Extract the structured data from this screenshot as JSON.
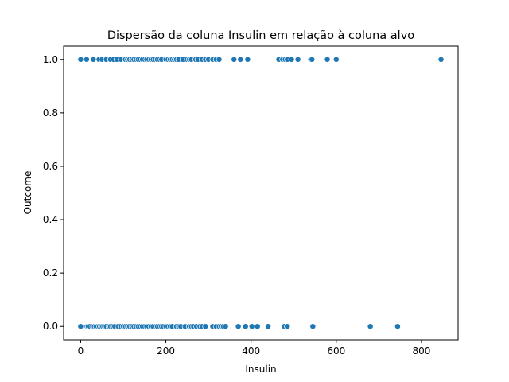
{
  "chart_data": {
    "type": "scatter",
    "title": "Dispersão da coluna Insulin em relação à coluna alvo",
    "xlabel": "Insulin",
    "ylabel": "Outcome",
    "xlim": [
      -40,
      886
    ],
    "ylim": [
      -0.05,
      1.05
    ],
    "xticks": [
      0,
      200,
      400,
      600,
      800
    ],
    "yticks": [
      0.0,
      0.2,
      0.4,
      0.6,
      0.8,
      1.0
    ],
    "xtick_labels": [
      "0",
      "200",
      "400",
      "600",
      "800"
    ],
    "ytick_labels": [
      "0.0",
      "0.2",
      "0.4",
      "0.6",
      "0.8",
      "1.0"
    ],
    "grid": false,
    "marker_color": "#1f77b4",
    "series": [
      {
        "points": [
          [
            0,
            1
          ],
          [
            14,
            1
          ],
          [
            30,
            1
          ],
          [
            43,
            1
          ],
          [
            50,
            1
          ],
          [
            60,
            1
          ],
          [
            70,
            1
          ],
          [
            77,
            1
          ],
          [
            85,
            1
          ],
          [
            95,
            1
          ],
          [
            105,
            1
          ],
          [
            110,
            1
          ],
          [
            115,
            1
          ],
          [
            120,
            1
          ],
          [
            125,
            1
          ],
          [
            130,
            1
          ],
          [
            135,
            1
          ],
          [
            140,
            1
          ],
          [
            145,
            1
          ],
          [
            150,
            1
          ],
          [
            155,
            1
          ],
          [
            160,
            1
          ],
          [
            165,
            1
          ],
          [
            170,
            1
          ],
          [
            175,
            1
          ],
          [
            180,
            1
          ],
          [
            185,
            1
          ],
          [
            190,
            1
          ],
          [
            200,
            1
          ],
          [
            205,
            1
          ],
          [
            210,
            1
          ],
          [
            215,
            1
          ],
          [
            220,
            1
          ],
          [
            225,
            1
          ],
          [
            230,
            1
          ],
          [
            240,
            1
          ],
          [
            250,
            1
          ],
          [
            255,
            1
          ],
          [
            260,
            1
          ],
          [
            270,
            1
          ],
          [
            275,
            1
          ],
          [
            285,
            1
          ],
          [
            293,
            1
          ],
          [
            300,
            1
          ],
          [
            310,
            1
          ],
          [
            318,
            1
          ],
          [
            325,
            1
          ],
          [
            360,
            1
          ],
          [
            375,
            1
          ],
          [
            392,
            1
          ],
          [
            465,
            1
          ],
          [
            474,
            1
          ],
          [
            480,
            1
          ],
          [
            485,
            1
          ],
          [
            495,
            1
          ],
          [
            510,
            1
          ],
          [
            540,
            1
          ],
          [
            543,
            1
          ],
          [
            579,
            1
          ],
          [
            600,
            1
          ],
          [
            846,
            1
          ],
          [
            0,
            0
          ],
          [
            15,
            0
          ],
          [
            18,
            0
          ],
          [
            22,
            0
          ],
          [
            28,
            0
          ],
          [
            32,
            0
          ],
          [
            36,
            0
          ],
          [
            40,
            0
          ],
          [
            44,
            0
          ],
          [
            48,
            0
          ],
          [
            52,
            0
          ],
          [
            56,
            0
          ],
          [
            60,
            0
          ],
          [
            66,
            0
          ],
          [
            70,
            0
          ],
          [
            75,
            0
          ],
          [
            80,
            0
          ],
          [
            88,
            0
          ],
          [
            94,
            0
          ],
          [
            100,
            0
          ],
          [
            105,
            0
          ],
          [
            110,
            0
          ],
          [
            115,
            0
          ],
          [
            120,
            0
          ],
          [
            125,
            0
          ],
          [
            130,
            0
          ],
          [
            135,
            0
          ],
          [
            140,
            0
          ],
          [
            145,
            0
          ],
          [
            150,
            0
          ],
          [
            155,
            0
          ],
          [
            160,
            0
          ],
          [
            165,
            0
          ],
          [
            170,
            0
          ],
          [
            176,
            0
          ],
          [
            180,
            0
          ],
          [
            185,
            0
          ],
          [
            190,
            0
          ],
          [
            194,
            0
          ],
          [
            200,
            0
          ],
          [
            205,
            0
          ],
          [
            210,
            0
          ],
          [
            215,
            0
          ],
          [
            225,
            0
          ],
          [
            230,
            0
          ],
          [
            235,
            0
          ],
          [
            245,
            0
          ],
          [
            255,
            0
          ],
          [
            260,
            0
          ],
          [
            265,
            0
          ],
          [
            272,
            0
          ],
          [
            280,
            0
          ],
          [
            285,
            0
          ],
          [
            293,
            0
          ],
          [
            310,
            0
          ],
          [
            318,
            0
          ],
          [
            325,
            0
          ],
          [
            330,
            0
          ],
          [
            335,
            0
          ],
          [
            340,
            0
          ],
          [
            370,
            0
          ],
          [
            387,
            0
          ],
          [
            402,
            0
          ],
          [
            415,
            0
          ],
          [
            440,
            0
          ],
          [
            478,
            0
          ],
          [
            485,
            0
          ],
          [
            545,
            0
          ],
          [
            680,
            0
          ],
          [
            744,
            0
          ]
        ]
      }
    ]
  }
}
